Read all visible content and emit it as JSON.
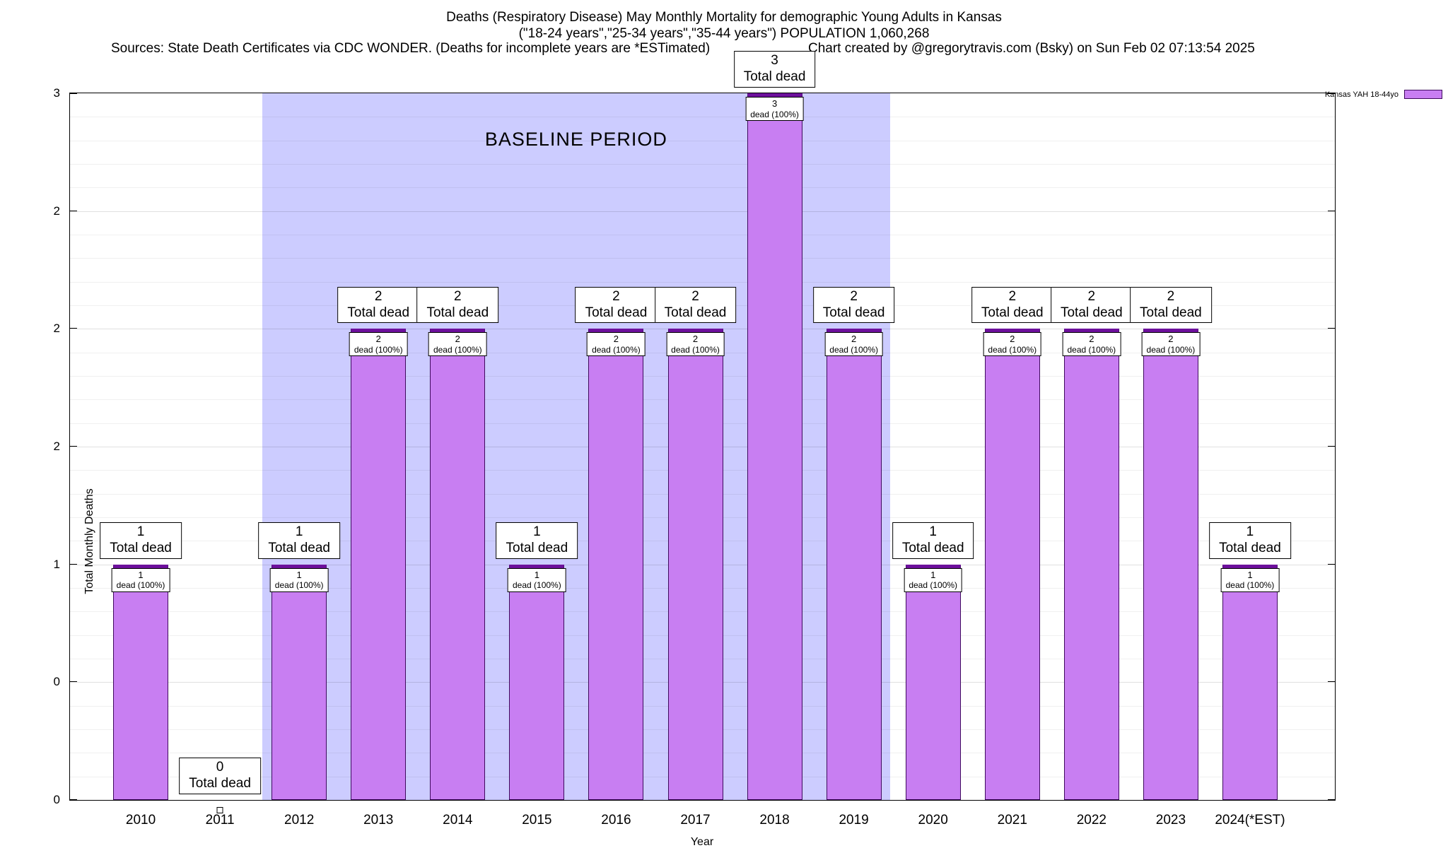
{
  "titles": {
    "line1": "Deaths (Respiratory Disease) May Monthly Mortality for demographic Young Adults in Kansas",
    "line2": "(\"18-24 years\",\"25-34 years\",\"35-44 years\") POPULATION 1,060,268",
    "sources": "Sources: State Death Certificates via CDC WONDER. (Deaths for incomplete years are *ESTimated)",
    "credit": "Chart created by @gregorytravis.com (Bsky) on Sun Feb 02 07:13:54 2025"
  },
  "legend": {
    "label": "Kansas YAH 18-44yo"
  },
  "axes": {
    "ylabel": "Total Monthly Deaths",
    "xlabel": "Year",
    "ytick_labels_bottom_to_top": [
      "0",
      "0",
      "1",
      "2",
      "2",
      "2",
      "3"
    ]
  },
  "chart_data": {
    "type": "bar",
    "title": "Deaths (Respiratory Disease) May Monthly Mortality for demographic Young Adults in Kansas",
    "subtitle": "(\"18-24 years\",\"25-34 years\",\"35-44 years\") POPULATION 1,060,268",
    "series_name": "Kansas YAH 18-44yo",
    "categories": [
      "2010",
      "2011",
      "2012",
      "2013",
      "2014",
      "2015",
      "2016",
      "2017",
      "2018",
      "2019",
      "2020",
      "2021",
      "2022",
      "2023",
      "2024(*EST)"
    ],
    "values": [
      1,
      0,
      1,
      2,
      2,
      1,
      2,
      2,
      3,
      2,
      1,
      2,
      2,
      2,
      1
    ],
    "total_label_text": "Total dead",
    "inner_label_text": "dead (100%)",
    "xlabel": "Year",
    "ylabel": "Total Monthly Deaths",
    "ylim": [
      0,
      3
    ],
    "ytick_step": 0.5,
    "grid": true,
    "legend_position": "top-right",
    "bar_color": "#c87ef2",
    "bar_border_color": "#3f0a5e",
    "baseline_region": {
      "label": "BASELINE PERIOD",
      "from": "2012",
      "to": "2019",
      "color": "#ccccff"
    }
  }
}
